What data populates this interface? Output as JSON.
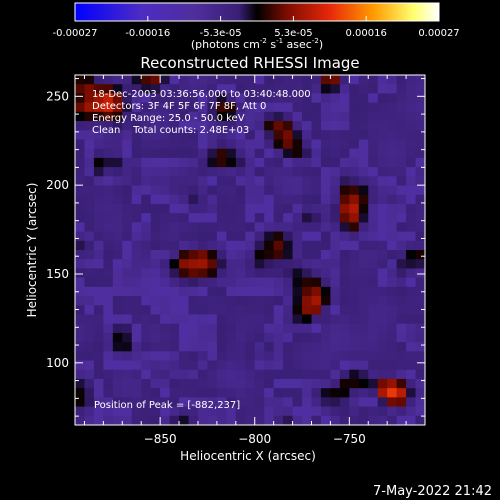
{
  "chart_data": {
    "type": "heatmap",
    "title": "Reconstructed RHESSI Image",
    "xlabel": "Heliocentric X (arcsec)",
    "ylabel": "Heliocentric Y (arcsec)",
    "colorbar": {
      "ticks": [
        "-0.00027",
        "-0.00016",
        "-5.3e-05",
        "5.3e-05",
        "0.00016",
        "0.00027"
      ],
      "unit_main": "(photons cm",
      "unit_exp1": "-2",
      "unit_mid": " s",
      "unit_exp2": "-1",
      "unit_end": " asec",
      "unit_exp3": "-2",
      "unit_close": ")",
      "vmin": -0.00027,
      "vmax": 0.00027
    },
    "x_ticks": [
      -850,
      -800,
      -750
    ],
    "x_tick_labels": [
      "−850",
      "−800",
      "−750"
    ],
    "y_ticks": [
      100,
      150,
      200,
      250
    ],
    "y_tick_labels": [
      "100",
      "150",
      "200",
      "250"
    ],
    "xlim": [
      -895,
      -710
    ],
    "ylim": [
      65,
      262
    ],
    "info_lines": [
      "18-Dec-2003 03:36:56.000 to 03:40:48.000",
      "Detectors: 3F 4F 5F 6F 7F 8F, Att 0",
      "Energy Range: 25.0 - 50.0 keV",
      "Clean    Total counts: 2.48E+03"
    ],
    "peak_label": "Position of Peak = [-882,237]",
    "grid_note": "emission intensity pattern, 37 x 38 pixels",
    "colors": {
      "colorbar_stops": [
        "#0000ff",
        "#4d2cc4",
        "#4f2e9c",
        "#3a1f76",
        "#000000",
        "#7a0c00",
        "#e8280a",
        "#ff9b00",
        "#ffff70",
        "#ffffff"
      ]
    }
  },
  "footer": {
    "timestamp": "7-May-2022 21:42"
  }
}
